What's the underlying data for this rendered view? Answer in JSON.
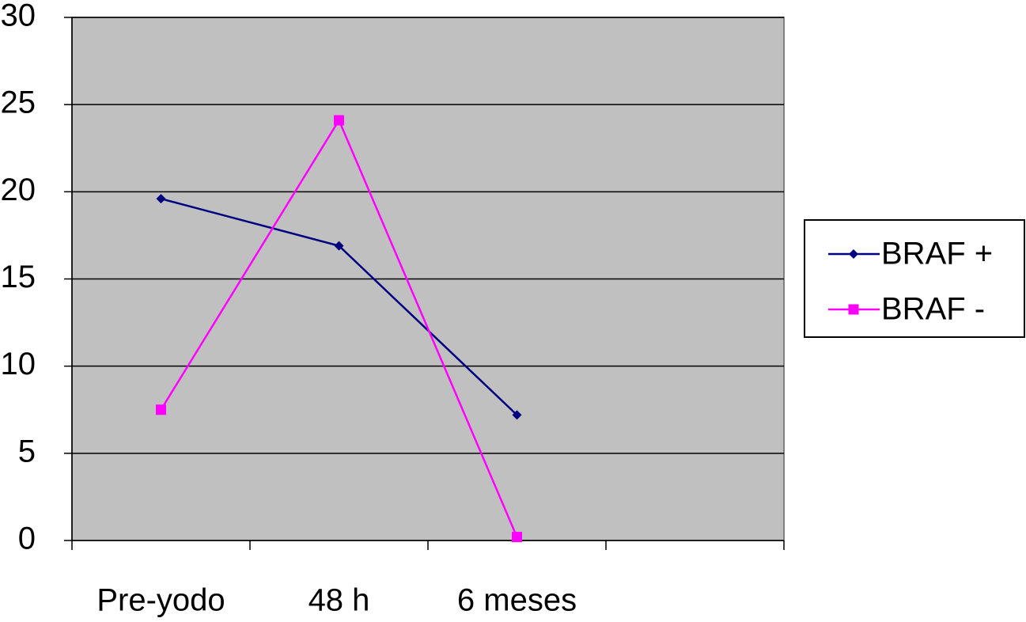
{
  "chart_data": {
    "type": "line",
    "categories": [
      "Pre-yodo",
      "48 h",
      "6 meses",
      null
    ],
    "series": [
      {
        "name": "BRAF +",
        "color": "#000080",
        "marker": "diamond",
        "values": [
          19.6,
          16.9,
          7.2,
          null
        ]
      },
      {
        "name": "BRAF -",
        "color": "#ff00ff",
        "marker": "square",
        "values": [
          7.5,
          24.1,
          0.2,
          null
        ]
      }
    ],
    "ylim": [
      0,
      30
    ],
    "yticks": [
      0,
      5,
      10,
      15,
      20,
      25,
      30
    ],
    "grid": true,
    "legend": "right",
    "plot_background": "#c0c0c0"
  }
}
